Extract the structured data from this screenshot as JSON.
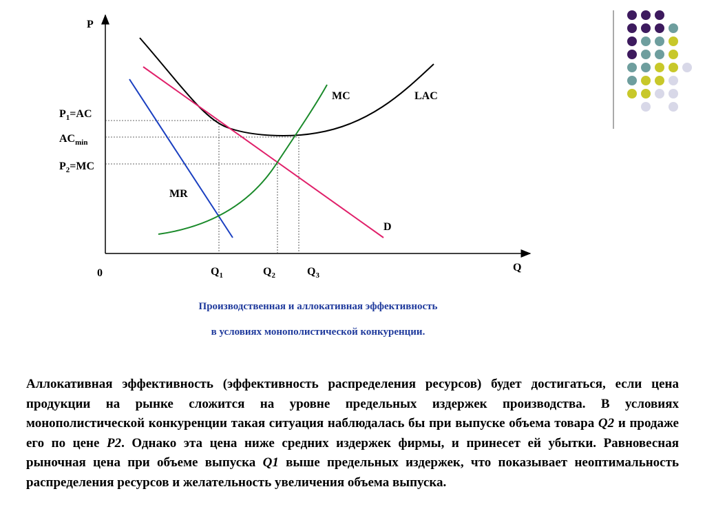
{
  "axes": {
    "y_label": "P",
    "x_label": "Q",
    "origin": "0"
  },
  "y_labels": [
    {
      "base": "P",
      "sub": "1",
      "tail": "=AC"
    },
    {
      "base": "AC",
      "sub": "min"
    },
    {
      "base": "P",
      "sub": "2",
      "tail": "=MC"
    }
  ],
  "x_labels": [
    {
      "base": "Q",
      "sub": "1"
    },
    {
      "base": "Q",
      "sub": "2"
    },
    {
      "base": "Q",
      "sub": "3"
    }
  ],
  "curves": {
    "mc": "MC",
    "lac": "LAC",
    "mr": "MR",
    "d": "D"
  },
  "caption": [
    "Производственная и аллокативная эффективность",
    "в условиях монополистической конкуренции."
  ],
  "paragraph": [
    {
      "text": "Аллокативная эффективность (эффективность распределения ресурсов) будет достигаться, если цена продукции на рынке сложится на уровне предельных издержек производства. В условиях монополистической конкуренции такая ситуация наблюдалась бы при выпуске объема товара "
    },
    {
      "text": "Q2",
      "italic": true
    },
    {
      "text": " и продаже его по цене "
    },
    {
      "text": "P2",
      "italic": true
    },
    {
      "text": ". Однако эта цена ниже средних издержек фирмы, и принесет ей убытки. Равновесная рыночная цена при объеме выпуска "
    },
    {
      "text": "Q1",
      "italic": true
    },
    {
      "text": " выше предельных издержек, что показывает неоптимальность распределения ресурсов и желательность увеличения объема выпуска."
    }
  ]
}
